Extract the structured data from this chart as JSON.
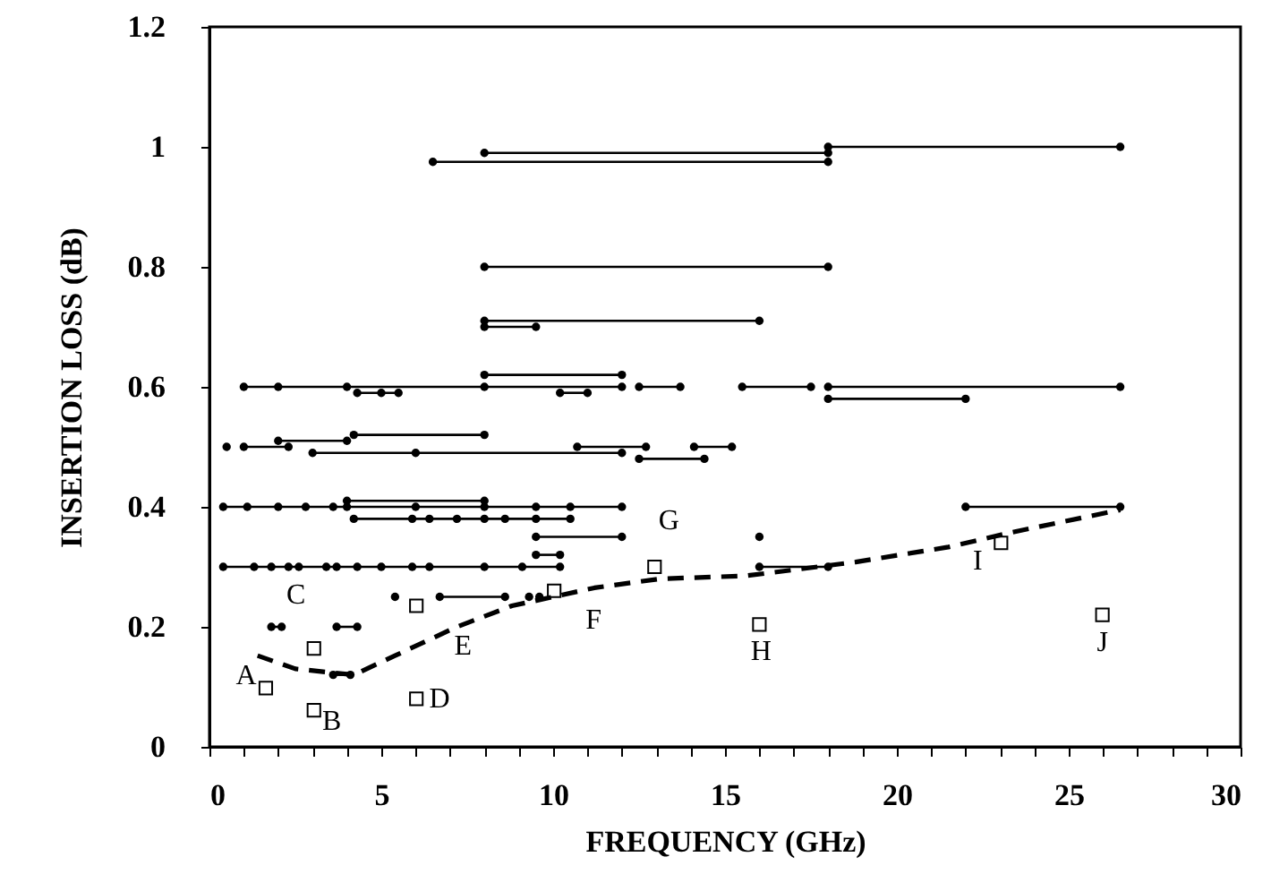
{
  "chart_data": {
    "type": "line",
    "xlabel": "FREQUENCY  (GHz)",
    "ylabel": "INSERTION LOSS (dB)",
    "xlim": [
      0,
      30
    ],
    "ylim": [
      0,
      1.2
    ],
    "xticks": [
      0,
      {
        "value": 1,
        "label": null
      },
      {
        "value": 2,
        "label": null
      },
      {
        "value": 3,
        "label": null
      },
      {
        "value": 4,
        "label": null
      },
      5,
      {
        "value": 6,
        "label": null
      },
      {
        "value": 7,
        "label": null
      },
      {
        "value": 8,
        "label": null
      },
      {
        "value": 9,
        "label": null
      },
      10,
      {
        "value": 11,
        "label": null
      },
      {
        "value": 12,
        "label": null
      },
      {
        "value": 13,
        "label": null
      },
      {
        "value": 14,
        "label": null
      },
      15,
      {
        "value": 16,
        "label": null
      },
      {
        "value": 17,
        "label": null
      },
      {
        "value": 18,
        "label": null
      },
      {
        "value": 19,
        "label": null
      },
      20,
      {
        "value": 21,
        "label": null
      },
      {
        "value": 22,
        "label": null
      },
      {
        "value": 23,
        "label": null
      },
      {
        "value": 24,
        "label": null
      },
      25,
      {
        "value": 26,
        "label": null
      },
      {
        "value": 27,
        "label": null
      },
      {
        "value": 28,
        "label": null
      },
      {
        "value": 29,
        "label": null
      },
      30
    ],
    "yticks": [
      0,
      0.2,
      0.4,
      0.6,
      0.8,
      1,
      1.2
    ],
    "grid": false,
    "marker": "circle",
    "line_style": "solid",
    "series": [
      {
        "color": "#000000",
        "x": [
          8,
          18
        ],
        "values": [
          0.99,
          0.99
        ]
      },
      {
        "color": "#000000",
        "x": [
          18,
          26.5
        ],
        "values": [
          1,
          1
        ]
      },
      {
        "color": "#000000",
        "x": [
          6.5,
          18
        ],
        "values": [
          0.975,
          0.975
        ]
      },
      {
        "color": "#000000",
        "x": [
          8,
          18
        ],
        "values": [
          0.8,
          0.8
        ]
      },
      {
        "color": "#000000",
        "x": [
          8,
          16
        ],
        "values": [
          0.71,
          0.71
        ]
      },
      {
        "color": "#000000",
        "x": [
          8,
          9.5
        ],
        "values": [
          0.7,
          0.7
        ]
      },
      {
        "color": "#000000",
        "x": [
          8,
          12
        ],
        "values": [
          0.62,
          0.62
        ]
      },
      {
        "color": "#000000",
        "x": [
          1,
          2,
          4,
          8,
          12
        ],
        "values": [
          0.6,
          0.6,
          0.6,
          0.6,
          0.6
        ]
      },
      {
        "color": "#000000",
        "x": [
          12.5,
          13.7
        ],
        "values": [
          0.6,
          0.6
        ]
      },
      {
        "color": "#000000",
        "x": [
          15.5,
          17.5
        ],
        "values": [
          0.6,
          0.6
        ]
      },
      {
        "color": "#000000",
        "x": [
          18,
          26.5
        ],
        "values": [
          0.6,
          0.6
        ]
      },
      {
        "color": "#000000",
        "x": [
          4.3,
          5,
          5.5
        ],
        "values": [
          0.59,
          0.59,
          0.59
        ]
      },
      {
        "color": "#000000",
        "x": [
          10.2,
          11
        ],
        "values": [
          0.59,
          0.59
        ]
      },
      {
        "color": "#000000",
        "x": [
          18,
          22
        ],
        "values": [
          0.58,
          0.58
        ]
      },
      {
        "color": "#000000",
        "x": [
          4.2,
          8
        ],
        "values": [
          0.52,
          0.52
        ]
      },
      {
        "color": "#000000",
        "x": [
          2,
          4
        ],
        "values": [
          0.51,
          0.51
        ]
      },
      {
        "color": "#000000",
        "x": [
          0.5
        ],
        "values": [
          0.5
        ]
      },
      {
        "color": "#000000",
        "x": [
          1,
          2.3
        ],
        "values": [
          0.5,
          0.5
        ]
      },
      {
        "color": "#000000",
        "x": [
          10.7,
          12.7
        ],
        "values": [
          0.5,
          0.5
        ]
      },
      {
        "color": "#000000",
        "x": [
          14.1,
          15.2
        ],
        "values": [
          0.5,
          0.5
        ]
      },
      {
        "color": "#000000",
        "x": [
          3,
          6,
          12
        ],
        "values": [
          0.49,
          0.49,
          0.49
        ]
      },
      {
        "color": "#000000",
        "x": [
          12.5,
          14.4
        ],
        "values": [
          0.48,
          0.48
        ]
      },
      {
        "color": "#000000",
        "x": [
          4,
          8
        ],
        "values": [
          0.41,
          0.41
        ]
      },
      {
        "color": "#000000",
        "x": [
          0.4,
          1.1,
          2,
          2.8,
          3.6,
          4,
          6,
          8,
          9.5,
          10.5,
          12
        ],
        "values": [
          0.4,
          0.4,
          0.4,
          0.4,
          0.4,
          0.4,
          0.4,
          0.4,
          0.4,
          0.4,
          0.4
        ]
      },
      {
        "color": "#000000",
        "x": [
          22,
          26.5
        ],
        "values": [
          0.4,
          0.4
        ]
      },
      {
        "color": "#000000",
        "x": [
          4.2,
          5.9,
          6.4,
          7.2,
          8,
          8.6,
          9.5,
          10.5
        ],
        "values": [
          0.38,
          0.38,
          0.38,
          0.38,
          0.38,
          0.38,
          0.38,
          0.38
        ]
      },
      {
        "color": "#000000",
        "x": [
          9.5,
          12
        ],
        "values": [
          0.35,
          0.35
        ]
      },
      {
        "color": "#000000",
        "x": [
          16
        ],
        "values": [
          0.35
        ]
      },
      {
        "color": "#000000",
        "x": [
          9.5,
          10.2
        ],
        "values": [
          0.32,
          0.32
        ]
      },
      {
        "color": "#000000",
        "x": [
          0.4,
          1.3,
          1.8,
          2.3,
          2.6,
          3.4,
          3.7,
          4.3,
          5,
          5.9,
          6.4,
          8,
          9.1,
          10.2
        ],
        "values": [
          0.3,
          0.3,
          0.3,
          0.3,
          0.3,
          0.3,
          0.3,
          0.3,
          0.3,
          0.3,
          0.3,
          0.3,
          0.3,
          0.3
        ]
      },
      {
        "color": "#000000",
        "x": [
          16,
          18
        ],
        "values": [
          0.3,
          0.3
        ]
      },
      {
        "color": "#000000",
        "x": [
          5.4
        ],
        "values": [
          0.25
        ]
      },
      {
        "color": "#000000",
        "x": [
          6.7,
          8.6
        ],
        "values": [
          0.25,
          0.25
        ]
      },
      {
        "color": "#000000",
        "x": [
          9.3
        ],
        "values": [
          0.25
        ]
      },
      {
        "color": "#000000",
        "x": [
          9.6
        ],
        "values": [
          0.25
        ]
      },
      {
        "color": "#000000",
        "x": [
          1.8,
          2.1
        ],
        "values": [
          0.2,
          0.2
        ]
      },
      {
        "color": "#000000",
        "x": [
          3.7,
          4.3
        ],
        "values": [
          0.2,
          0.2
        ]
      },
      {
        "color": "#000000",
        "x": [
          3.6,
          4.1
        ],
        "values": [
          0.12,
          0.12
        ]
      },
      {
        "marker": "none",
        "line_style": "dashed",
        "color": "#000000",
        "x": [
          1.4,
          2.5,
          4.2,
          5.4,
          7.2,
          8.8,
          11.2,
          13.1,
          15.6,
          18.8,
          21.5,
          23.3,
          26.5
        ],
        "values": [
          0.152,
          0.13,
          0.12,
          0.152,
          0.2,
          0.235,
          0.265,
          0.28,
          0.285,
          0.308,
          0.333,
          0.357,
          0.395
        ]
      },
      {
        "type": "scatter",
        "marker": "square",
        "color": "#000000",
        "x": [
          1.64,
          3.04,
          3.04,
          6.02,
          6.02,
          10.03,
          12.95,
          16,
          23.03,
          25.98
        ],
        "values": [
          0.098,
          0.061,
          0.164,
          0.08,
          0.235,
          0.26,
          0.3,
          0.204,
          0.34,
          0.22
        ]
      }
    ],
    "annotations": [
      {
        "text": "A",
        "x": 1.64,
        "y": 0.098
      },
      {
        "text": "B",
        "x": 3.04,
        "y": 0.061
      },
      {
        "text": "C",
        "x": 3.04,
        "y": 0.164
      },
      {
        "text": "D",
        "x": 6.02,
        "y": 0.08
      },
      {
        "text": "E",
        "x": 6.02,
        "y": 0.235
      },
      {
        "text": "F",
        "x": 10.03,
        "y": 0.26
      },
      {
        "text": "G",
        "x": 12.95,
        "y": 0.3
      },
      {
        "text": "H",
        "x": 16,
        "y": 0.204
      },
      {
        "text": "I",
        "x": 23.03,
        "y": 0.34
      },
      {
        "text": "J",
        "x": 25.98,
        "y": 0.22
      }
    ]
  }
}
